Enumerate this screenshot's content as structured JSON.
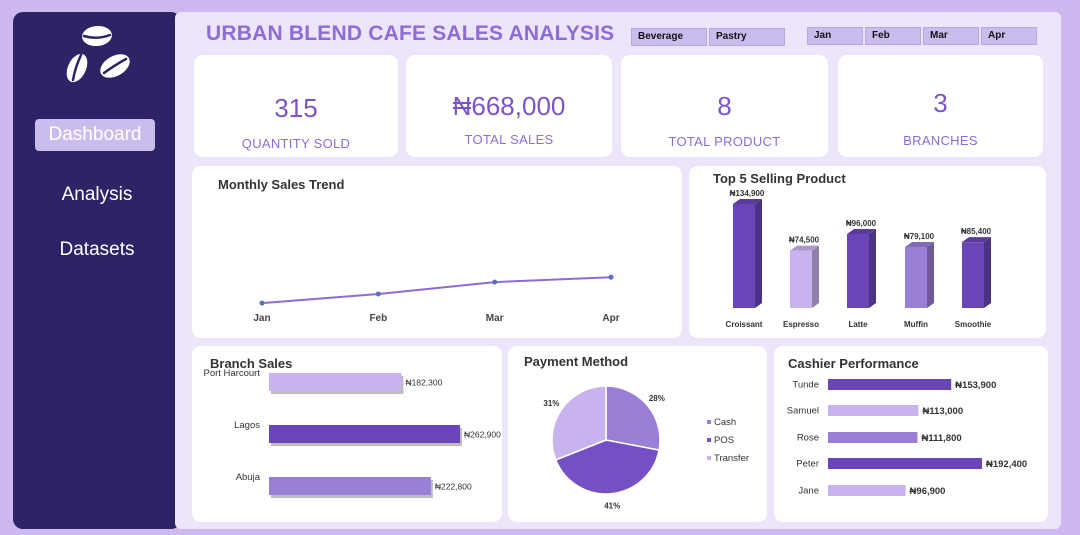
{
  "nav": {
    "logo_icon": "coffee-beans-icon",
    "items": [
      {
        "label": "Dashboard",
        "active": true
      },
      {
        "label": "Analysis",
        "active": false
      },
      {
        "label": "Datasets",
        "active": false
      }
    ]
  },
  "header": {
    "title": "URBAN BLEND CAFE SALES ANALYSIS",
    "category_slicers": [
      "Beverage",
      "Pastry"
    ],
    "month_slicers": [
      "Jan",
      "Feb",
      "Mar",
      "Apr"
    ]
  },
  "kpis": [
    {
      "value": "315",
      "label": "QUANTITY SOLD"
    },
    {
      "value": "₦668,000",
      "label": "TOTAL SALES"
    },
    {
      "value": "8",
      "label": "TOTAL PRODUCT"
    },
    {
      "value": "3",
      "label": "BRANCHES"
    }
  ],
  "colors": {
    "accent": "#8d6cd6",
    "dark": "#6a45b8",
    "light": "#c8b3ee",
    "mid": "#9a7fd6",
    "sidebar": "#2c2466"
  },
  "panels": {
    "monthly": "Monthly Sales Trend",
    "top5": "Top 5 Selling Product",
    "branch": "Branch Sales",
    "payment": "Payment Method",
    "cashier": "Cashier Performance"
  },
  "chart_data": [
    {
      "type": "line",
      "title": "Monthly Sales Trend",
      "categories": [
        "Jan",
        "Feb",
        "Mar",
        "Apr"
      ],
      "values": [
        147000,
        160000,
        177000,
        184000
      ]
    },
    {
      "type": "bar",
      "title": "Top 5 Selling Product",
      "categories": [
        "Croissant",
        "Espresso",
        "Latte",
        "Muffin",
        "Smoothie"
      ],
      "values": [
        134900,
        74500,
        96000,
        79100,
        85400
      ],
      "labels": [
        "₦134,900",
        "₦74,500",
        "₦96,000",
        "₦79,100",
        "₦85,400"
      ],
      "colors": [
        "#6a45b8",
        "#c8b3ee",
        "#6a45b8",
        "#9a7fd6",
        "#6a45b8"
      ]
    },
    {
      "type": "bar",
      "orientation": "horizontal",
      "title": "Branch Sales",
      "categories": [
        "Port Harcourt",
        "Lagos",
        "Abuja"
      ],
      "values": [
        182300,
        262900,
        222800
      ],
      "labels": [
        "₦182,300",
        "₦262,900",
        "₦222,800"
      ],
      "colors": [
        "#c8b3ee",
        "#6a45b8",
        "#9a7fd6"
      ]
    },
    {
      "type": "pie",
      "title": "Payment Method",
      "categories": [
        "Cash",
        "POS",
        "Transfer"
      ],
      "values": [
        28,
        41,
        31
      ],
      "labels": [
        "28%",
        "41%",
        "31%"
      ],
      "colors": [
        "#9a7fd6",
        "#7550c4",
        "#c8b3ee"
      ],
      "legend": "right"
    },
    {
      "type": "bar",
      "orientation": "horizontal",
      "title": "Cashier Performance",
      "categories": [
        "Tunde",
        "Samuel",
        "Rose",
        "Peter",
        "Jane"
      ],
      "values": [
        153900,
        113000,
        111800,
        192400,
        96900
      ],
      "labels": [
        "₦153,900",
        "₦113,000",
        "₦111,800",
        "₦192,400",
        "₦96,900"
      ],
      "colors": [
        "#6a45b8",
        "#c8b3ee",
        "#9a7fd6",
        "#6a45b8",
        "#c8b3ee"
      ]
    }
  ]
}
